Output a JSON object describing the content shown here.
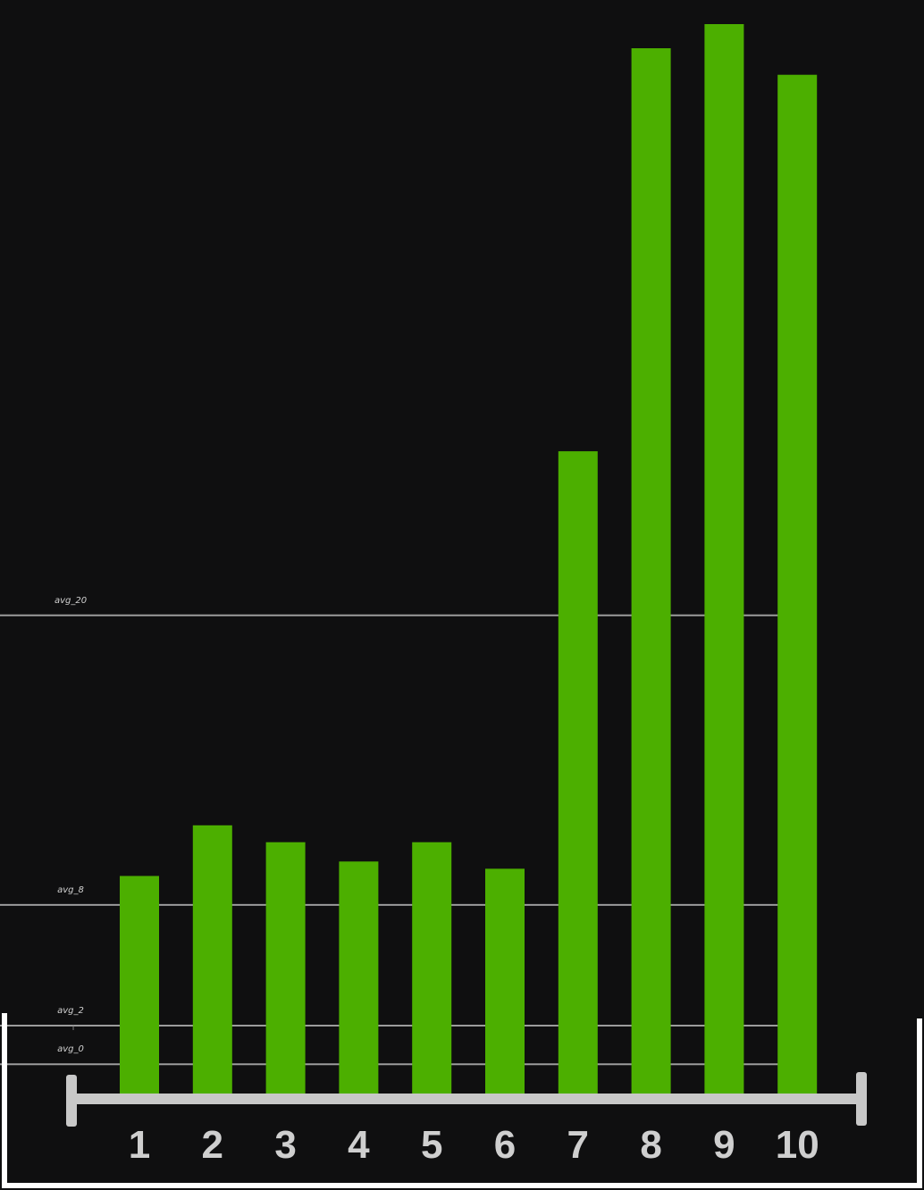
{
  "chart_data": {
    "type": "bar",
    "categories": [
      "1",
      "2",
      "3",
      "4",
      "5",
      "6",
      "7",
      "8",
      "9",
      "10"
    ],
    "values": [
      9.2,
      11.3,
      10.6,
      9.8,
      10.6,
      9.5,
      26.8,
      43.5,
      44.5,
      42.4
    ],
    "ylim": [
      -4.7,
      45.5
    ],
    "reference_lines": [
      {
        "label": "avg_20",
        "value": 20
      },
      {
        "label": "avg_8",
        "value": 8
      },
      {
        "label": "avg_2",
        "value": 3
      },
      {
        "label": "avg_0",
        "value": 1.4
      }
    ],
    "stray_mark": "ı",
    "grid": false,
    "legend": "none",
    "title": "",
    "xlabel": "",
    "ylabel": ""
  },
  "colors": {
    "background": "#0f0f10",
    "bar": "#4caf00",
    "axis": "#c8c8c8",
    "tick_label": "#cfcfcf",
    "reference_line": "#b5b5b5",
    "reference_label": "#d0d0d0",
    "frame": "#ffffff"
  }
}
